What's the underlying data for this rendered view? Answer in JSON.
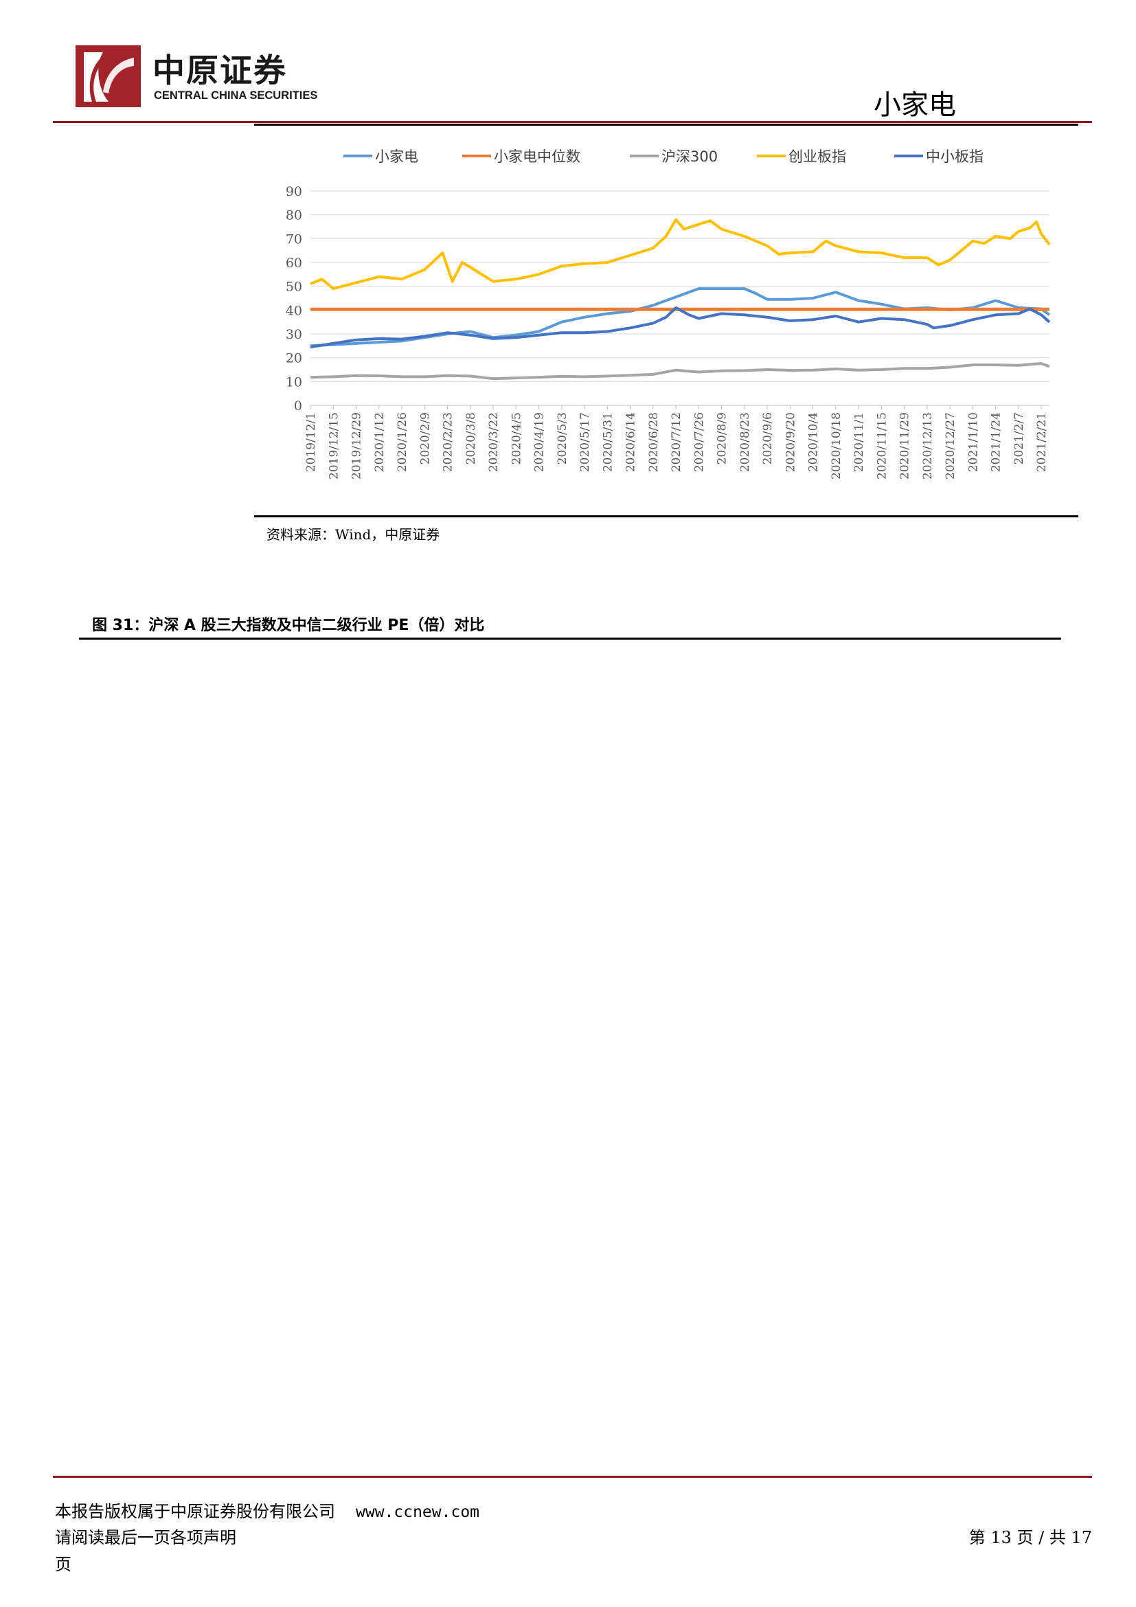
{
  "header": {
    "brand_cn": "中原证券",
    "brand_en": "CENTRAL CHINA SECURITIES",
    "section": "小家电"
  },
  "figure": {
    "source": "资料来源：Wind，中原证券",
    "next_caption": "图 31：沪深 A 股三大指数及中信二级行业 PE（倍）对比"
  },
  "footer": {
    "copyright": "本报告版权属于中原证券股份有限公司",
    "url": "www.ccnew.com",
    "disclaimer": "请阅读最后一页各项声明",
    "page_label": "第 13 页 / 共 17",
    "page_tail": "页"
  },
  "colors": {
    "brand_red": "#8c1b1b",
    "小家电": "#5b9bd5",
    "小家电中位数": "#ed7d31",
    "沪深300": "#a5a5a5",
    "创业板指": "#ffc000",
    "中小板指": "#4472c4"
  },
  "chart_data": {
    "type": "line",
    "ylim": [
      0,
      90
    ],
    "yticks": [
      0,
      10,
      20,
      30,
      40,
      50,
      60,
      70,
      80,
      90
    ],
    "grid": true,
    "legend_position": "top",
    "x_tick_labels": [
      "2019/12/1",
      "2019/12/15",
      "2019/12/29",
      "2020/1/12",
      "2020/1/26",
      "2020/2/9",
      "2020/2/23",
      "2020/3/8",
      "2020/3/22",
      "2020/4/5",
      "2020/4/19",
      "2020/5/3",
      "2020/5/17",
      "2020/5/31",
      "2020/6/14",
      "2020/6/28",
      "2020/7/12",
      "2020/7/26",
      "2020/8/9",
      "2020/8/23",
      "2020/9/6",
      "2020/9/20",
      "2020/10/4",
      "2020/10/18",
      "2020/11/1",
      "2020/11/15",
      "2020/11/29",
      "2020/12/13",
      "2020/12/27",
      "2021/1/10",
      "2021/1/24",
      "2021/2/7",
      "2021/2/21"
    ],
    "x_tick_values": [
      "2019-12-01",
      "2019-12-15",
      "2019-12-29",
      "2020-01-12",
      "2020-01-26",
      "2020-02-09",
      "2020-02-23",
      "2020-03-08",
      "2020-03-22",
      "2020-04-05",
      "2020-04-19",
      "2020-05-03",
      "2020-05-17",
      "2020-05-31",
      "2020-06-14",
      "2020-06-28",
      "2020-07-12",
      "2020-07-26",
      "2020-08-09",
      "2020-08-23",
      "2020-09-06",
      "2020-09-20",
      "2020-10-04",
      "2020-10-18",
      "2020-11-01",
      "2020-11-15",
      "2020-11-29",
      "2020-12-13",
      "2020-12-27",
      "2021-01-10",
      "2021-01-24",
      "2021-02-07",
      "2021-02-21"
    ],
    "xlim": [
      "2019-12-01",
      "2021-02-26"
    ],
    "series": [
      {
        "name": "小家电",
        "color": "#5b9bd5",
        "points": [
          [
            "2019-12-01",
            25
          ],
          [
            "2019-12-15",
            25.5
          ],
          [
            "2019-12-29",
            26
          ],
          [
            "2020-01-12",
            26.5
          ],
          [
            "2020-01-26",
            27
          ],
          [
            "2020-02-09",
            28.5
          ],
          [
            "2020-02-23",
            30
          ],
          [
            "2020-03-08",
            31
          ],
          [
            "2020-03-22",
            28.5
          ],
          [
            "2020-04-05",
            29.5
          ],
          [
            "2020-04-19",
            31
          ],
          [
            "2020-05-03",
            35
          ],
          [
            "2020-05-17",
            37
          ],
          [
            "2020-05-31",
            38.5
          ],
          [
            "2020-06-14",
            39.5
          ],
          [
            "2020-06-28",
            42
          ],
          [
            "2020-07-12",
            45.5
          ],
          [
            "2020-07-26",
            49
          ],
          [
            "2020-08-09",
            49
          ],
          [
            "2020-08-23",
            49
          ],
          [
            "2020-08-30",
            47
          ],
          [
            "2020-09-06",
            44.5
          ],
          [
            "2020-09-20",
            44.5
          ],
          [
            "2020-10-04",
            45
          ],
          [
            "2020-10-18",
            47.5
          ],
          [
            "2020-11-01",
            44
          ],
          [
            "2020-11-15",
            42.5
          ],
          [
            "2020-11-29",
            40.5
          ],
          [
            "2020-12-13",
            41
          ],
          [
            "2020-12-27",
            40
          ],
          [
            "2021-01-10",
            41
          ],
          [
            "2021-01-24",
            44
          ],
          [
            "2021-02-07",
            41
          ],
          [
            "2021-02-21",
            40.5
          ],
          [
            "2021-02-26",
            38
          ]
        ]
      },
      {
        "name": "小家电中位数",
        "color": "#ed7d31",
        "points": [
          [
            "2019-12-01",
            40.3
          ],
          [
            "2021-02-26",
            40.3
          ]
        ]
      },
      {
        "name": "沪深300",
        "color": "#a5a5a5",
        "points": [
          [
            "2019-12-01",
            11.8
          ],
          [
            "2019-12-15",
            12
          ],
          [
            "2019-12-29",
            12.5
          ],
          [
            "2020-01-12",
            12.4
          ],
          [
            "2020-01-26",
            12
          ],
          [
            "2020-02-09",
            12
          ],
          [
            "2020-02-23",
            12.5
          ],
          [
            "2020-03-08",
            12.3
          ],
          [
            "2020-03-22",
            11.2
          ],
          [
            "2020-04-05",
            11.5
          ],
          [
            "2020-04-19",
            11.8
          ],
          [
            "2020-05-03",
            12.2
          ],
          [
            "2020-05-17",
            12
          ],
          [
            "2020-05-31",
            12.3
          ],
          [
            "2020-06-14",
            12.6
          ],
          [
            "2020-06-28",
            13
          ],
          [
            "2020-07-12",
            14.8
          ],
          [
            "2020-07-26",
            14
          ],
          [
            "2020-08-09",
            14.5
          ],
          [
            "2020-08-23",
            14.6
          ],
          [
            "2020-09-06",
            15
          ],
          [
            "2020-09-20",
            14.7
          ],
          [
            "2020-10-04",
            14.8
          ],
          [
            "2020-10-18",
            15.3
          ],
          [
            "2020-11-01",
            14.8
          ],
          [
            "2020-11-15",
            15
          ],
          [
            "2020-11-29",
            15.5
          ],
          [
            "2020-12-13",
            15.5
          ],
          [
            "2020-12-27",
            16
          ],
          [
            "2021-01-10",
            17
          ],
          [
            "2021-01-24",
            17
          ],
          [
            "2021-02-07",
            16.8
          ],
          [
            "2021-02-21",
            17.6
          ],
          [
            "2021-02-26",
            16.3
          ]
        ]
      },
      {
        "name": "创业板指",
        "color": "#ffc000",
        "points": [
          [
            "2019-12-01",
            51
          ],
          [
            "2019-12-08",
            53
          ],
          [
            "2019-12-15",
            49
          ],
          [
            "2019-12-29",
            51.5
          ],
          [
            "2020-01-12",
            54
          ],
          [
            "2020-01-26",
            53
          ],
          [
            "2020-02-09",
            57
          ],
          [
            "2020-02-20",
            64
          ],
          [
            "2020-02-26",
            52
          ],
          [
            "2020-03-03",
            60
          ],
          [
            "2020-03-08",
            58
          ],
          [
            "2020-03-22",
            52
          ],
          [
            "2020-04-05",
            53
          ],
          [
            "2020-04-19",
            55
          ],
          [
            "2020-05-03",
            58.5
          ],
          [
            "2020-05-17",
            59.5
          ],
          [
            "2020-05-31",
            60
          ],
          [
            "2020-06-14",
            63
          ],
          [
            "2020-06-28",
            66
          ],
          [
            "2020-07-06",
            71
          ],
          [
            "2020-07-12",
            78
          ],
          [
            "2020-07-17",
            74
          ],
          [
            "2020-07-26",
            76
          ],
          [
            "2020-08-02",
            77.5
          ],
          [
            "2020-08-09",
            74
          ],
          [
            "2020-08-23",
            71
          ],
          [
            "2020-09-06",
            67
          ],
          [
            "2020-09-13",
            63.5
          ],
          [
            "2020-09-20",
            64
          ],
          [
            "2020-10-04",
            64.5
          ],
          [
            "2020-10-12",
            69
          ],
          [
            "2020-10-18",
            67
          ],
          [
            "2020-11-01",
            64.5
          ],
          [
            "2020-11-15",
            64
          ],
          [
            "2020-11-29",
            62
          ],
          [
            "2020-12-13",
            62
          ],
          [
            "2020-12-20",
            59
          ],
          [
            "2020-12-27",
            61
          ],
          [
            "2021-01-10",
            69
          ],
          [
            "2021-01-17",
            68
          ],
          [
            "2021-01-24",
            71
          ],
          [
            "2021-02-02",
            70
          ],
          [
            "2021-02-07",
            73
          ],
          [
            "2021-02-14",
            74.5
          ],
          [
            "2021-02-18",
            77
          ],
          [
            "2021-02-21",
            72
          ],
          [
            "2021-02-26",
            67.5
          ]
        ]
      },
      {
        "name": "中小板指",
        "color": "#4472c4",
        "points": [
          [
            "2019-12-01",
            24.5
          ],
          [
            "2019-12-15",
            26
          ],
          [
            "2019-12-29",
            27.5
          ],
          [
            "2020-01-12",
            28
          ],
          [
            "2020-01-26",
            27.8
          ],
          [
            "2020-02-09",
            29
          ],
          [
            "2020-02-23",
            30.5
          ],
          [
            "2020-03-08",
            29.5
          ],
          [
            "2020-03-22",
            28
          ],
          [
            "2020-04-05",
            28.5
          ],
          [
            "2020-04-19",
            29.5
          ],
          [
            "2020-05-03",
            30.5
          ],
          [
            "2020-05-17",
            30.5
          ],
          [
            "2020-05-31",
            31
          ],
          [
            "2020-06-14",
            32.5
          ],
          [
            "2020-06-28",
            34.5
          ],
          [
            "2020-07-06",
            37
          ],
          [
            "2020-07-12",
            41
          ],
          [
            "2020-07-20",
            38
          ],
          [
            "2020-07-26",
            36.5
          ],
          [
            "2020-08-09",
            38.5
          ],
          [
            "2020-08-23",
            38
          ],
          [
            "2020-09-06",
            37
          ],
          [
            "2020-09-20",
            35.5
          ],
          [
            "2020-10-04",
            36
          ],
          [
            "2020-10-18",
            37.5
          ],
          [
            "2020-11-01",
            35
          ],
          [
            "2020-11-15",
            36.5
          ],
          [
            "2020-11-29",
            36
          ],
          [
            "2020-12-13",
            34
          ],
          [
            "2020-12-17",
            32.5
          ],
          [
            "2020-12-27",
            33.5
          ],
          [
            "2021-01-10",
            36
          ],
          [
            "2021-01-24",
            38
          ],
          [
            "2021-02-07",
            38.5
          ],
          [
            "2021-02-14",
            40.5
          ],
          [
            "2021-02-21",
            38
          ],
          [
            "2021-02-26",
            35
          ]
        ]
      }
    ]
  }
}
